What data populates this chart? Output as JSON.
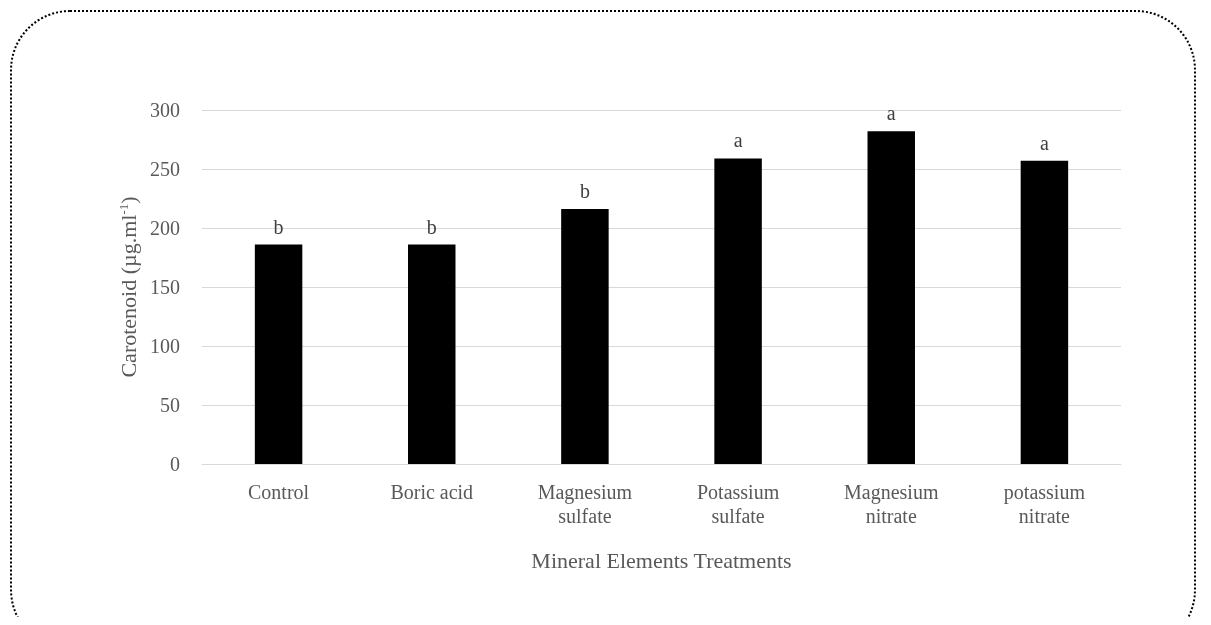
{
  "chart_data": {
    "type": "bar",
    "xlabel": "Mineral Elements Treatments",
    "ylabel": "Carotenoid (µg.ml$^{-1}$)",
    "categories": [
      "Control",
      "Boric acid",
      "Magnesium\nsulfate",
      "Potassium\nsulfate",
      "Magnesium\nnitrate",
      "potassium\nnitrate"
    ],
    "values": [
      186,
      186,
      216,
      259,
      282,
      257
    ],
    "color": "#000000",
    "ylim": [
      0,
      300
    ],
    "yticks": [
      0,
      50,
      100,
      150,
      200,
      250,
      300
    ],
    "grid": "y",
    "annotations": [
      {
        "text": "b",
        "x": "Control",
        "y": 186
      },
      {
        "text": "b",
        "x": "Boric acid",
        "y": 186
      },
      {
        "text": "b",
        "x": "Magnesium\nsulfate",
        "y": 216
      },
      {
        "text": "a",
        "x": "Potassium\nsulfate",
        "y": 259
      },
      {
        "text": "a",
        "x": "Magnesium\nnitrate",
        "y": 282
      },
      {
        "text": "a",
        "x": "potassium\nnitrate",
        "y": 257
      }
    ]
  }
}
